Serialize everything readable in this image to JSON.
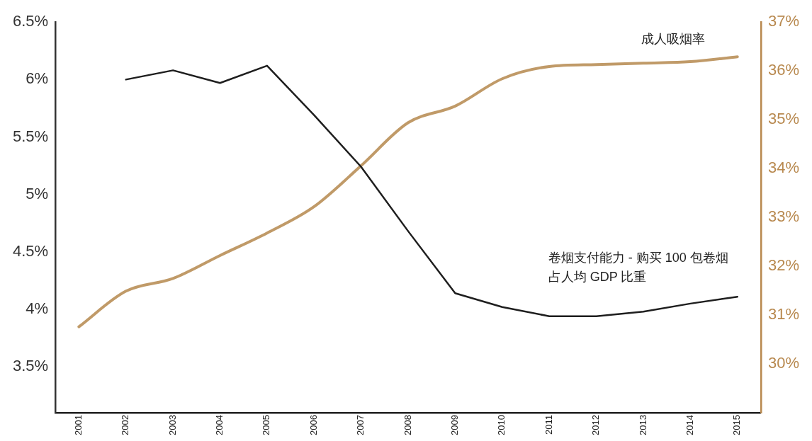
{
  "chart_data": {
    "type": "line",
    "categories": [
      "2001",
      "2002",
      "2003",
      "2004",
      "2005",
      "2006",
      "2007",
      "2008",
      "2009",
      "2010",
      "2011",
      "2012",
      "2013",
      "2014",
      "2015"
    ],
    "series": [
      {
        "name": "卷烟支付能力 - 购买 100 包卷烟占人均 GDP 比重",
        "color": "#1e1e1e",
        "axis": "y",
        "values": [
          null,
          6.0,
          6.08,
          5.97,
          6.12,
          5.69,
          5.24,
          4.68,
          4.14,
          4.02,
          3.94,
          3.94,
          3.98,
          4.05,
          4.11
        ]
      },
      {
        "name": "成人吸烟率",
        "color": "#c09a68",
        "axis": "y2",
        "values": [
          30.76,
          31.49,
          31.75,
          32.22,
          32.68,
          33.22,
          34.06,
          34.94,
          35.28,
          35.84,
          36.09,
          36.13,
          36.16,
          36.19,
          36.29
        ]
      }
    ],
    "ylim": [
      3.1,
      6.5
    ],
    "yticks": [
      {
        "value": 3.5,
        "label": "3.5%"
      },
      {
        "value": 4,
        "label": "4%"
      },
      {
        "value": 4.5,
        "label": "4.5%"
      },
      {
        "value": 5,
        "label": "5%"
      },
      {
        "value": 5.5,
        "label": "5.5%"
      },
      {
        "value": 6,
        "label": "6%"
      },
      {
        "value": 6.5,
        "label": "6.5%"
      }
    ],
    "y2lim": [
      29,
      37
    ],
    "y2ticks": [
      {
        "value": 30,
        "label": "30%"
      },
      {
        "value": 31,
        "label": "31%"
      },
      {
        "value": 32,
        "label": "32%"
      },
      {
        "value": 33,
        "label": "33%"
      },
      {
        "value": 34,
        "label": "34%"
      },
      {
        "value": 35,
        "label": "35%"
      },
      {
        "value": 36,
        "label": "36%"
      },
      {
        "value": 37,
        "label": "37%"
      }
    ],
    "grid": false,
    "legend": false,
    "marker": "none",
    "line_style": "solid"
  }
}
